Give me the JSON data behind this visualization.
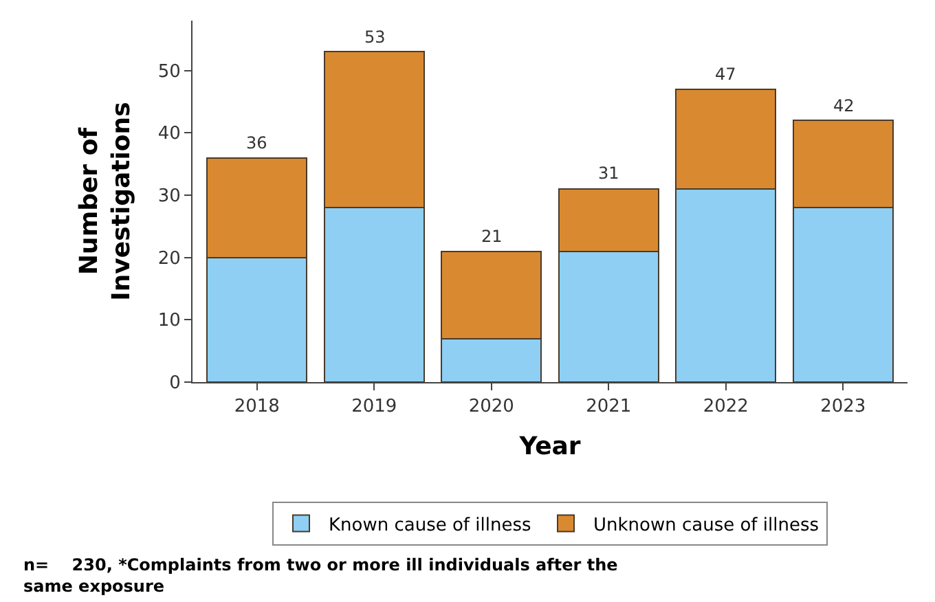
{
  "chart_data": {
    "type": "bar",
    "stacked": true,
    "xlabel": "Year",
    "ylabel": "Number of Investigations",
    "categories": [
      "2018",
      "2019",
      "2020",
      "2021",
      "2022",
      "2023"
    ],
    "series": [
      {
        "name": "Known cause of illness",
        "color": "#8ecff3",
        "values": [
          20,
          28,
          7,
          21,
          31,
          28
        ]
      },
      {
        "name": "Unknown cause of illness",
        "color": "#d98a30",
        "values": [
          16,
          25,
          14,
          10,
          16,
          14
        ]
      }
    ],
    "totals": [
      "36",
      "53",
      "21",
      "31",
      "47",
      "42"
    ],
    "ylim": [
      0,
      58
    ],
    "yticks": [
      0,
      10,
      20,
      30,
      40,
      50
    ],
    "legend": "bottom",
    "annotations": [
      "n=    230, *Complaints from two or more ill individuals after the same exposure"
    ]
  }
}
